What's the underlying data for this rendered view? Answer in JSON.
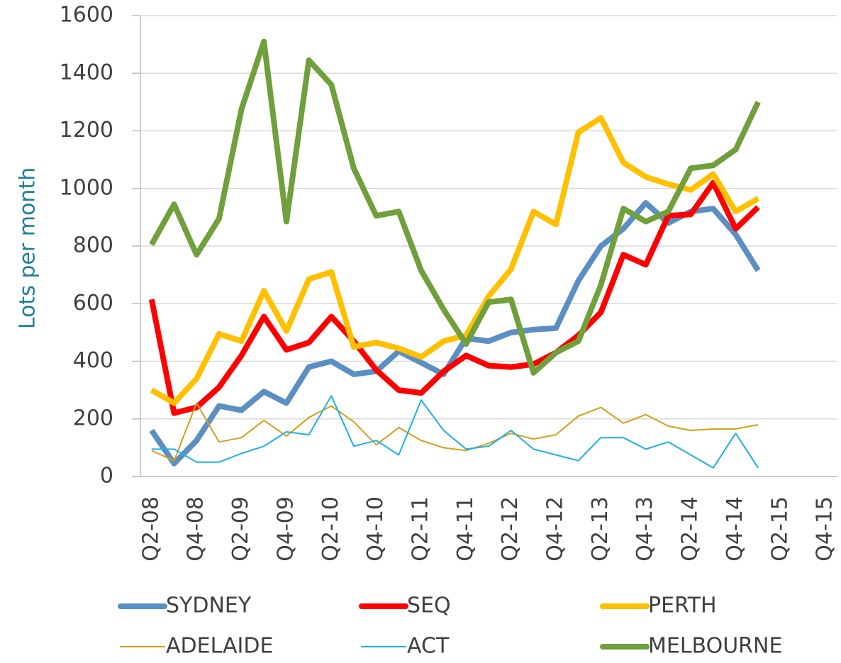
{
  "chart_data": {
    "type": "line",
    "y_label": "Lots per month",
    "categories": [
      "Q2-08",
      null,
      "Q4-08",
      null,
      "Q2-09",
      null,
      "Q4-09",
      null,
      "Q2-10",
      null,
      "Q4-10",
      null,
      "Q2-11",
      null,
      "Q4-11",
      null,
      "Q2-12",
      null,
      "Q4-12",
      null,
      "Q2-13",
      null,
      "Q4-13",
      null,
      "Q2-14",
      null,
      "Q4-14",
      null,
      "Q2-15",
      null,
      "Q4-15"
    ],
    "ylim": [
      0,
      1600
    ],
    "yticks": [
      0,
      200,
      400,
      600,
      800,
      1000,
      1200,
      1400,
      1600
    ],
    "grid": true,
    "series": [
      {
        "name": "SYDNEY",
        "color": "#5b8fc4",
        "width": 8,
        "values": [
          160,
          45,
          125,
          245,
          230,
          295,
          255,
          380,
          400,
          355,
          365,
          435,
          395,
          355,
          480,
          470,
          500,
          510,
          515,
          680,
          800,
          860,
          950,
          880,
          920,
          930,
          840,
          715,
          null,
          null,
          null
        ]
      },
      {
        "name": "SEQ",
        "color": "#ff0000",
        "width": 8,
        "values": [
          615,
          220,
          240,
          310,
          420,
          555,
          440,
          465,
          555,
          470,
          370,
          300,
          290,
          365,
          420,
          385,
          380,
          390,
          430,
          490,
          570,
          770,
          735,
          905,
          910,
          1020,
          860,
          935,
          null,
          null,
          null
        ]
      },
      {
        "name": "PERTH",
        "color": "#ffc000",
        "width": 8,
        "values": [
          300,
          255,
          340,
          495,
          470,
          645,
          505,
          685,
          710,
          450,
          465,
          445,
          415,
          470,
          490,
          625,
          720,
          920,
          875,
          1195,
          1245,
          1090,
          1040,
          1015,
          995,
          1050,
          920,
          965,
          null,
          null,
          null
        ]
      },
      {
        "name": "ADELAIDE",
        "color": "#d4a017",
        "width": 2,
        "values": [
          90,
          55,
          255,
          120,
          135,
          195,
          140,
          205,
          245,
          190,
          110,
          170,
          125,
          100,
          90,
          115,
          150,
          130,
          145,
          210,
          240,
          185,
          215,
          175,
          160,
          165,
          165,
          180,
          null,
          null,
          null
        ]
      },
      {
        "name": "ACT",
        "color": "#1ab0e8",
        "width": 2,
        "values": [
          95,
          95,
          50,
          50,
          80,
          105,
          155,
          145,
          280,
          105,
          125,
          75,
          265,
          160,
          95,
          105,
          160,
          95,
          75,
          55,
          135,
          135,
          95,
          120,
          75,
          30,
          150,
          30,
          null,
          null,
          null
        ]
      },
      {
        "name": "MELBOURNE",
        "color": "#70a03c",
        "width": 8,
        "values": [
          805,
          945,
          770,
          895,
          1275,
          1510,
          885,
          1445,
          1360,
          1070,
          905,
          920,
          715,
          580,
          460,
          605,
          615,
          360,
          430,
          470,
          665,
          930,
          885,
          920,
          1070,
          1080,
          1135,
          1300,
          null,
          null,
          null
        ]
      }
    ]
  }
}
